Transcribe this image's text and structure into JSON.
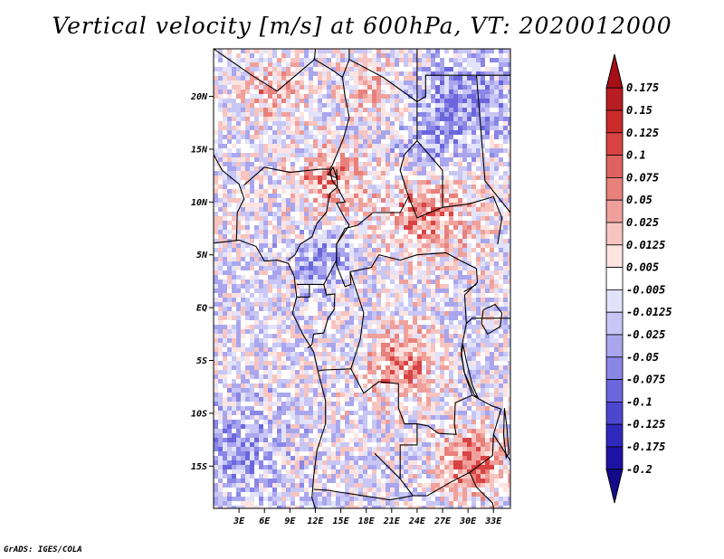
{
  "title": "Vertical velocity [m/s] at 600hPa, VT: 2020012000",
  "footer": "GrADS: IGES/COLA",
  "map": {
    "lon_range": [
      0,
      35
    ],
    "lat_range": [
      -19,
      24.5
    ],
    "lon_ticks": [
      3,
      6,
      9,
      12,
      15,
      18,
      21,
      24,
      27,
      30,
      33
    ],
    "lon_tick_labels": [
      "3E",
      "6E",
      "9E",
      "12E",
      "15E",
      "18E",
      "21E",
      "24E",
      "27E",
      "30E",
      "33E"
    ],
    "lat_ticks": [
      20,
      15,
      10,
      5,
      0,
      -5,
      -10,
      -15
    ],
    "lat_tick_labels": [
      "20N",
      "15N",
      "10N",
      "5N",
      "EQ",
      "5S",
      "10S",
      "15S"
    ]
  },
  "colorbar": {
    "levels": [
      "0.175",
      "0.15",
      "0.125",
      "0.1",
      "0.075",
      "0.05",
      "0.025",
      "0.0125",
      "0.005",
      "-0.005",
      "-0.0125",
      "-0.025",
      "-0.05",
      "-0.075",
      "-0.1",
      "-0.125",
      "-0.175",
      "-0.2"
    ],
    "colors": [
      "#a50f15",
      "#b81d22",
      "#cb2b2b",
      "#d94343",
      "#e0625f",
      "#e8807c",
      "#f0a09b",
      "#f7c4c0",
      "#fde4e1",
      "#ffffff",
      "#e2e2fb",
      "#c7c6f5",
      "#a9a6ee",
      "#8a86e6",
      "#6b66dc",
      "#4d47cf",
      "#3028bd",
      "#1e12a4",
      "#140a8c"
    ]
  }
}
